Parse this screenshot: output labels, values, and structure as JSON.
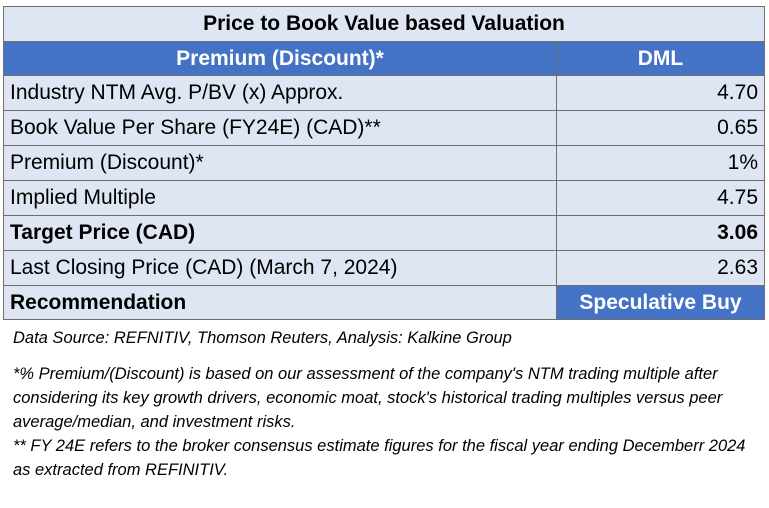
{
  "table": {
    "title": "Price to Book Value based Valuation",
    "header": {
      "label": "Premium (Discount)*",
      "value": "DML"
    },
    "rows": [
      {
        "label": "Industry NTM Avg. P/BV (x) Approx.",
        "value": "4.70"
      },
      {
        "label": "Book Value Per Share (FY24E) (CAD)**",
        "value": "0.65"
      },
      {
        "label": "Premium (Discount)*",
        "value": "1%"
      },
      {
        "label": "Implied Multiple",
        "value": "4.75"
      },
      {
        "label": "Target Price (CAD)",
        "value": "3.06"
      },
      {
        "label": "Last Closing Price (CAD) (March 7, 2024)",
        "value": "2.63"
      }
    ],
    "recommendation": {
      "label": "Recommendation",
      "value": "Speculative Buy"
    }
  },
  "notes": {
    "source": "Data Source: REFNITIV, Thomson Reuters,  Analysis: Kalkine Group",
    "footnote1": "*% Premium/(Discount) is based on our assessment of the company's NTM trading multiple after considering its key growth drivers, economic moat, stock's historical trading multiples versus peer average/median, and investment risks.",
    "footnote2": "** FY 24E refers to the broker consensus estimate figures for the fiscal year ending Decemberr 2024 as extracted from REFINITIV."
  },
  "colors": {
    "header_blue": "#4472c4",
    "light_blue": "#dde6f2"
  }
}
